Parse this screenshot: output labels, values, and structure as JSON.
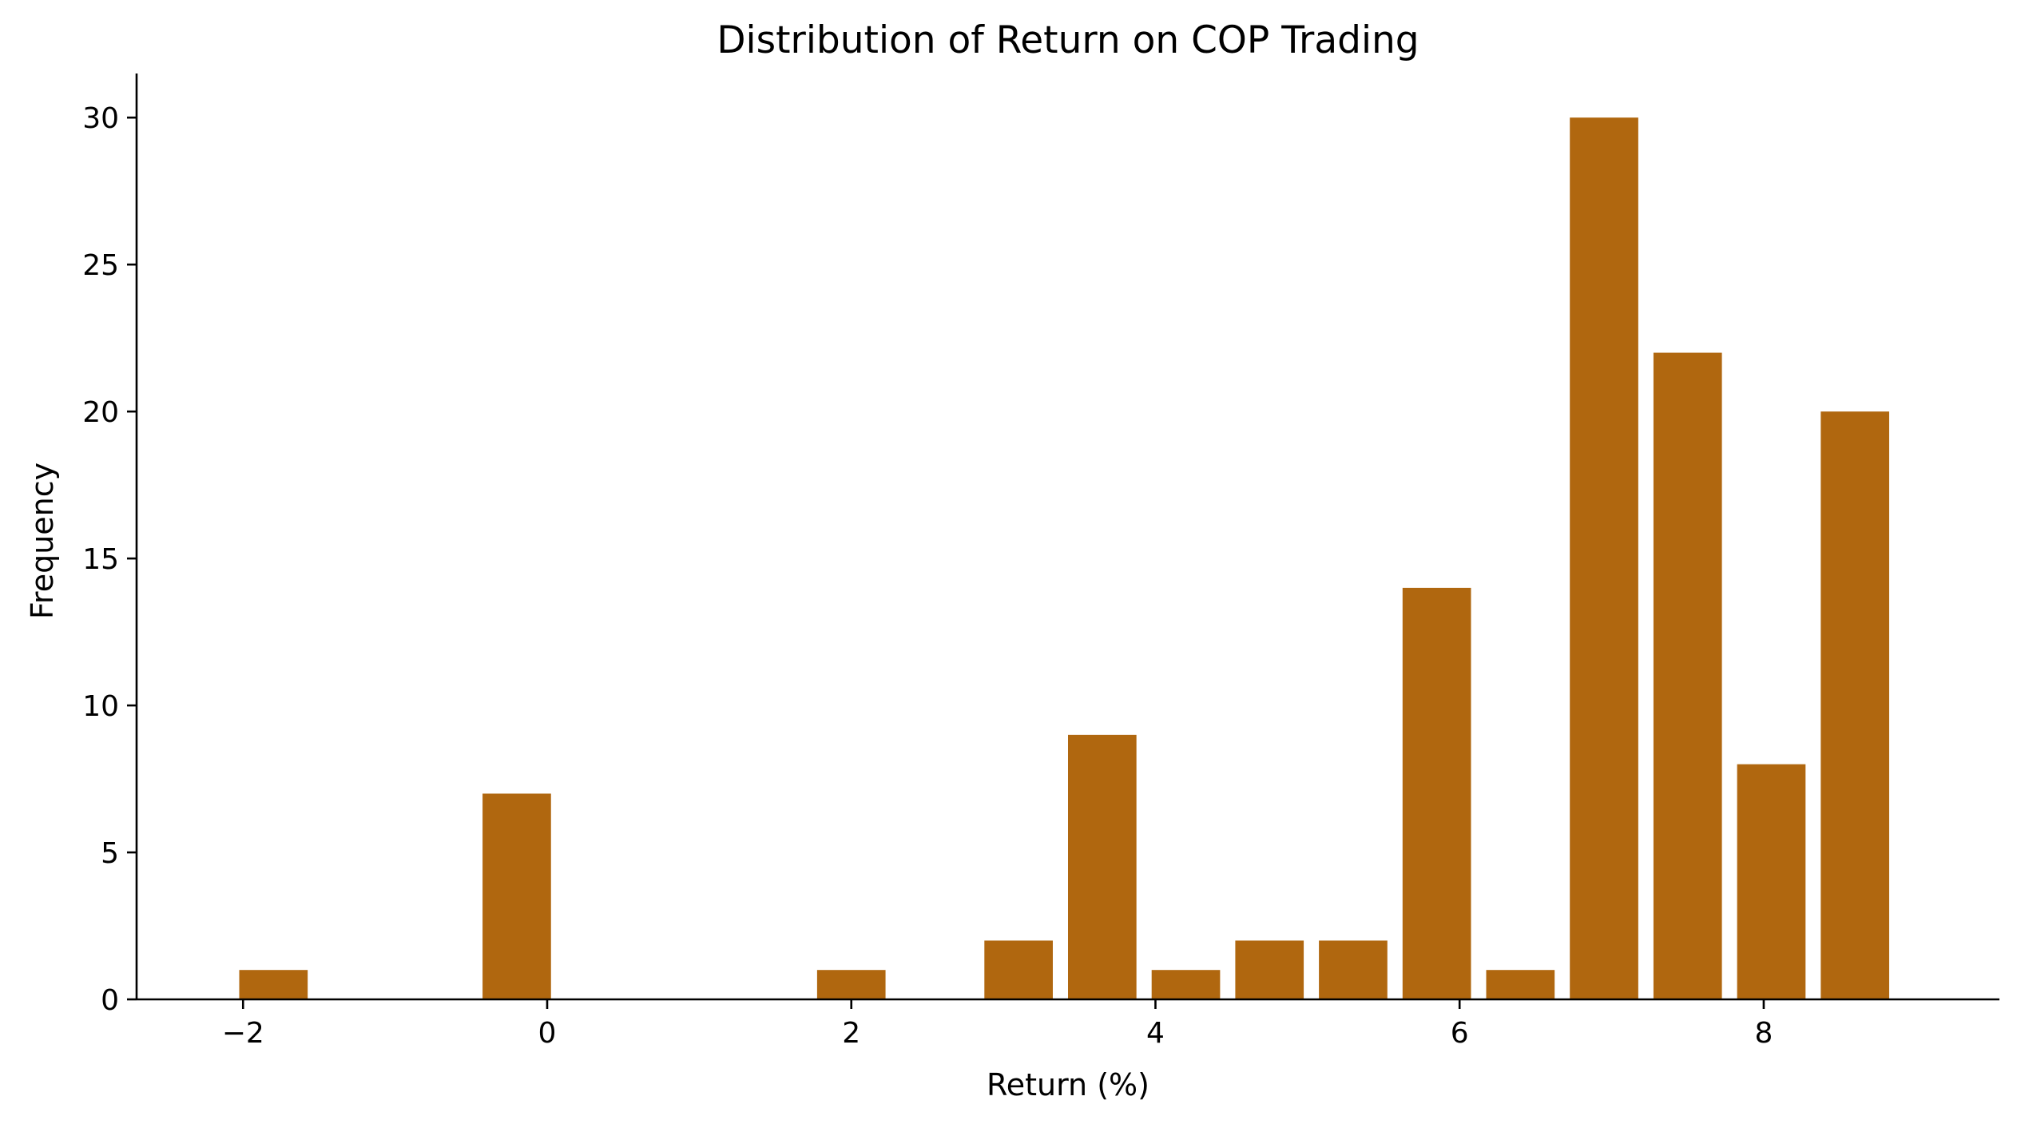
{
  "chart_data": {
    "type": "bar",
    "title": "Distribution of Return on COP Trading",
    "xlabel": "Return (%)",
    "ylabel": "Frequency",
    "x": [
      -1.8,
      -0.2,
      2.0,
      3.1,
      3.65,
      4.2,
      4.75,
      5.3,
      5.85,
      6.4,
      6.95,
      7.5,
      8.05,
      8.6
    ],
    "values": [
      1,
      7,
      1,
      2,
      9,
      1,
      2,
      2,
      14,
      1,
      30,
      22,
      8,
      20
    ],
    "bar_width": 0.45,
    "xlim": [
      -2.7,
      9.55
    ],
    "ylim": [
      0,
      31.5
    ],
    "xticks": [
      -2,
      0,
      2,
      4,
      6,
      8
    ],
    "xtick_labels": [
      "−2",
      "0",
      "2",
      "4",
      "6",
      "8"
    ],
    "yticks": [
      0,
      5,
      10,
      15,
      20,
      25,
      30
    ],
    "ytick_labels": [
      "0",
      "5",
      "10",
      "15",
      "20",
      "25",
      "30"
    ],
    "grid": false,
    "legend": false,
    "color": "#b0670f"
  }
}
